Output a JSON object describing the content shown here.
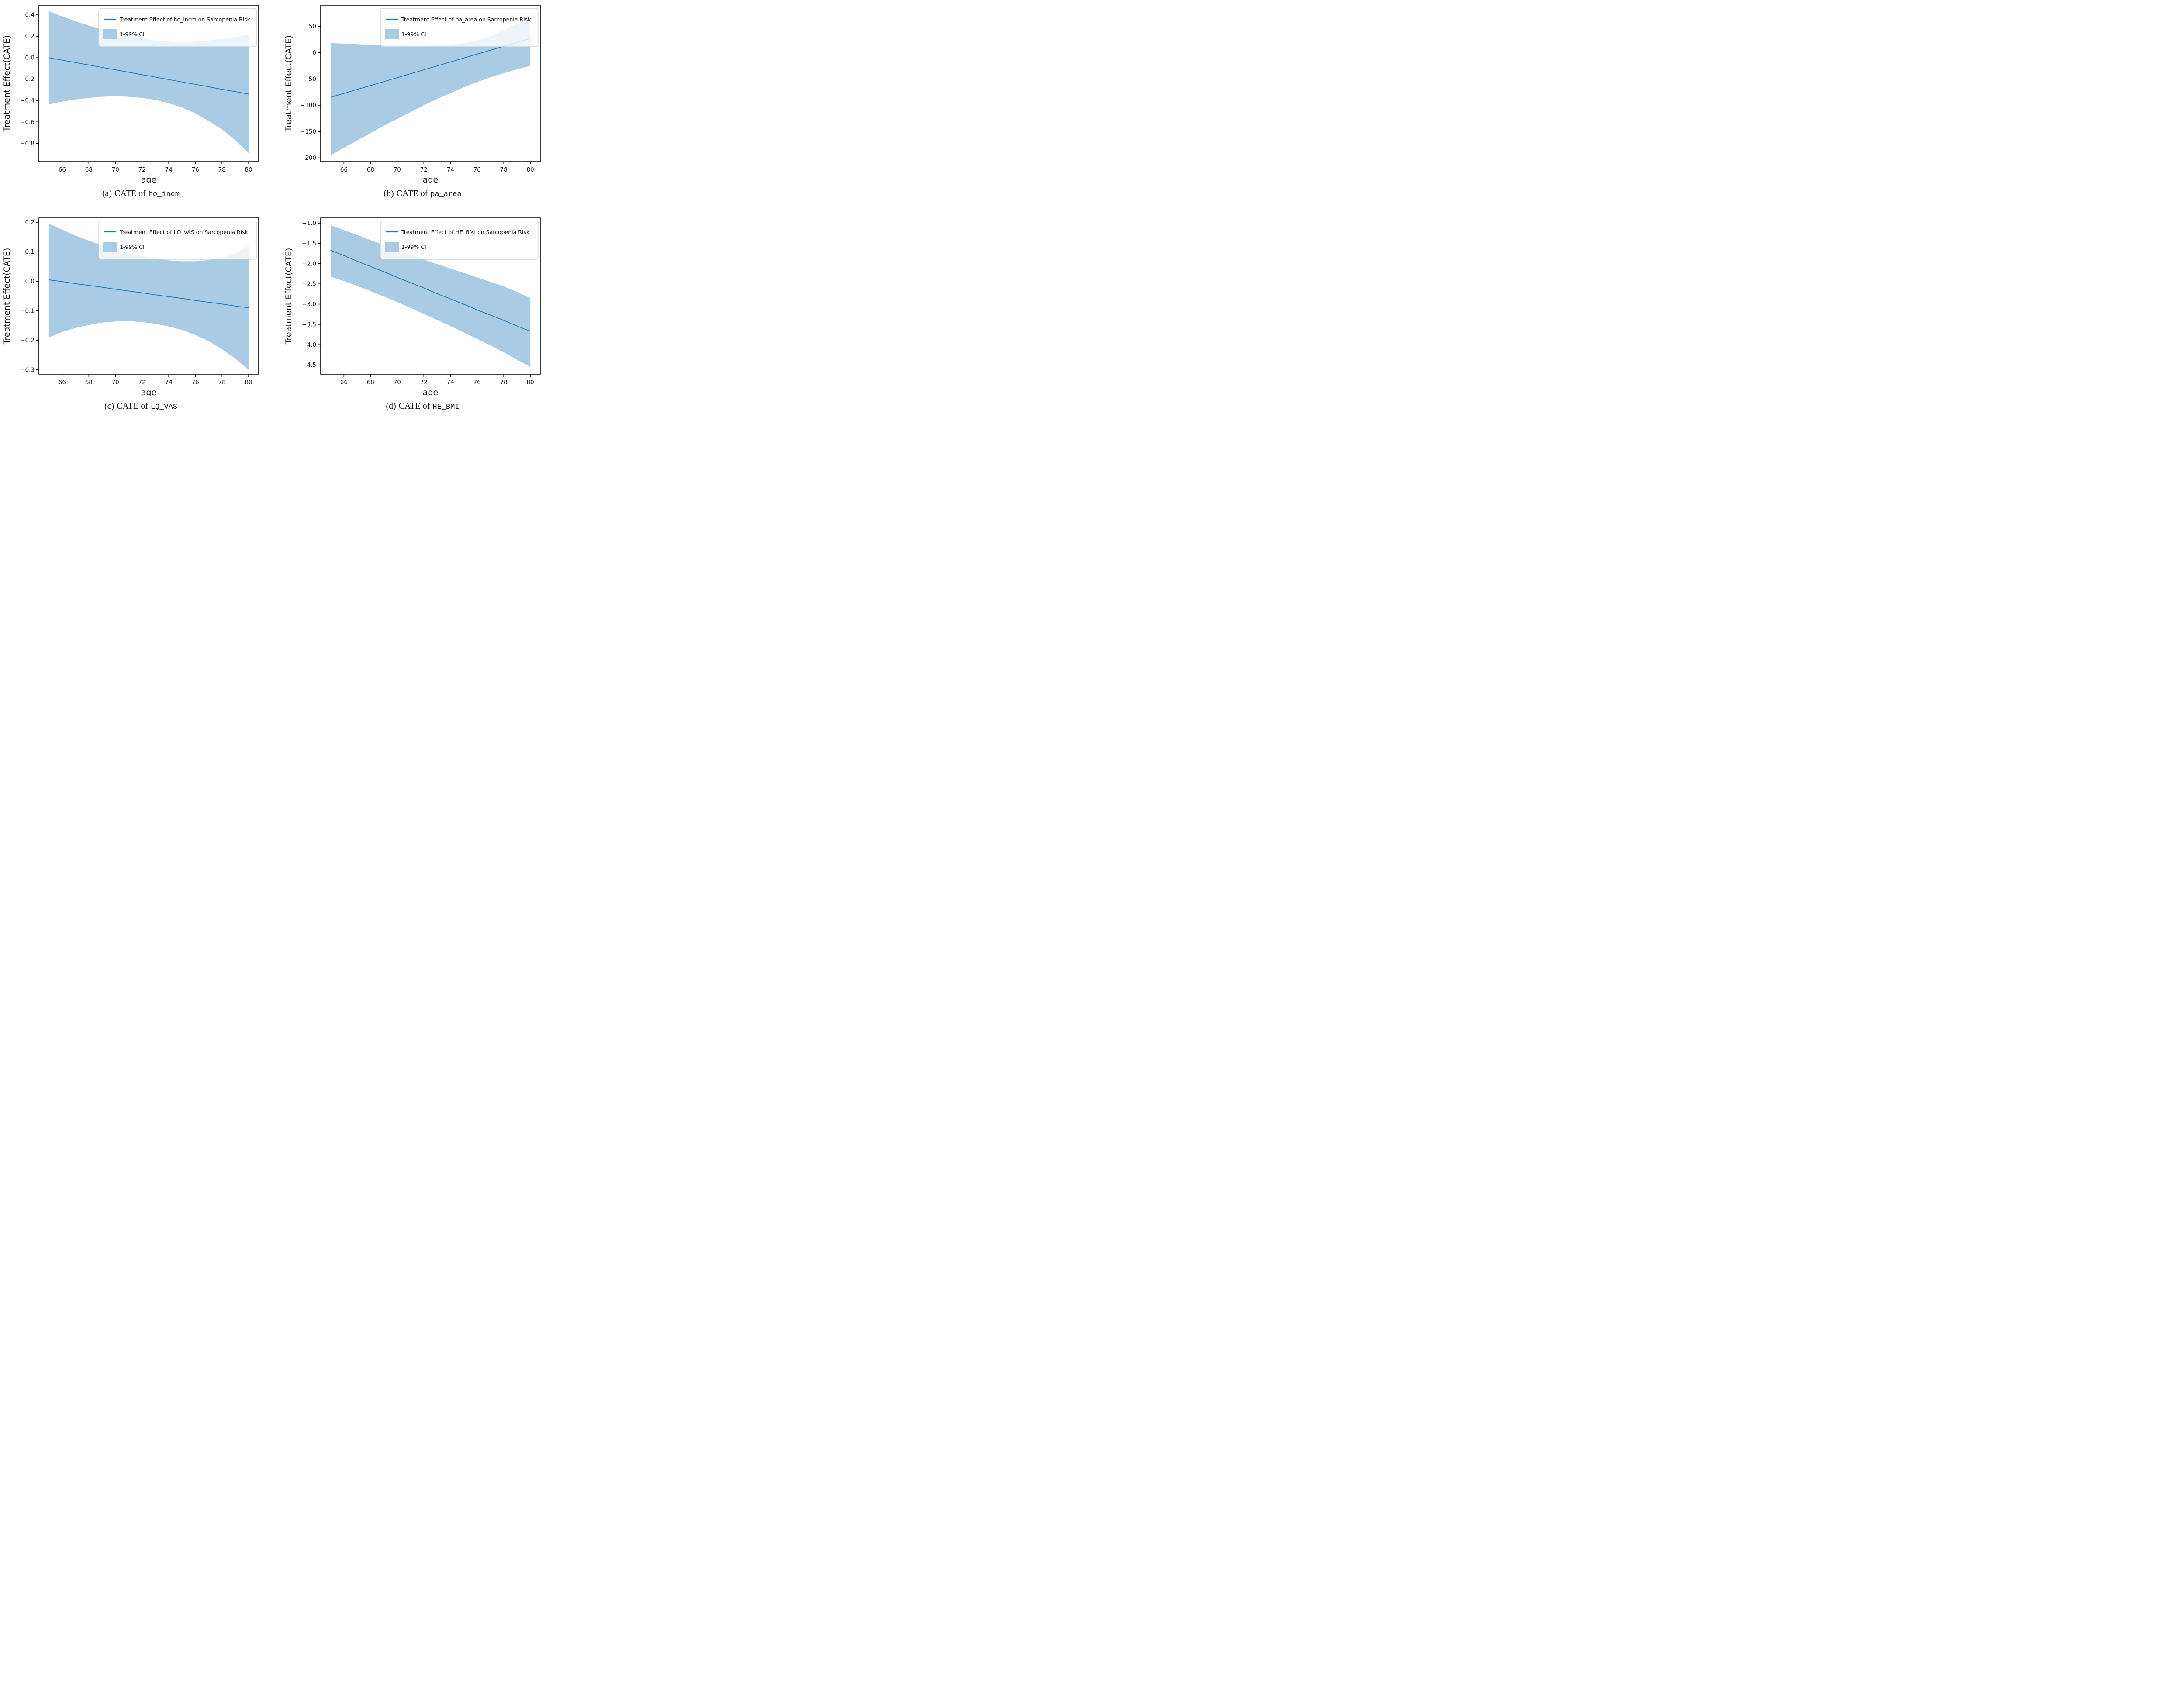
{
  "figure_title": "",
  "chart_data": [
    {
      "id": "a",
      "type": "line",
      "caption": {
        "prefix": "(a)",
        "text": "CATE of",
        "code": "ho_incm"
      },
      "xlabel": "age",
      "ylabel": "Treatment Effect(CATE)",
      "legend": {
        "line_label": "Treatment Effect of ho_incm on Sarcopenia Risk",
        "band_label": "1-99% CI",
        "position": "upper center"
      },
      "grid": false,
      "xlim": [
        64.25,
        80.75
      ],
      "ylim": [
        -0.97,
        0.49
      ],
      "xticks": [
        66,
        68,
        70,
        72,
        74,
        76,
        78,
        80
      ],
      "xtick_labels": [
        "66",
        "68",
        "70",
        "72",
        "74",
        "76",
        "78",
        "80"
      ],
      "yticks": [
        0.4,
        0.2,
        0.0,
        -0.2,
        -0.4,
        -0.6,
        -0.8
      ],
      "ytick_labels": [
        "0.4",
        "0.2",
        "0.0",
        "−0.2",
        "−0.4",
        "−0.6",
        "−0.8"
      ],
      "x": [
        65,
        66,
        67,
        68,
        69,
        70,
        71,
        72,
        73,
        74,
        75,
        76,
        77,
        78,
        79,
        80
      ],
      "line": [
        0.0,
        -0.023,
        -0.045,
        -0.068,
        -0.091,
        -0.113,
        -0.136,
        -0.159,
        -0.181,
        -0.204,
        -0.227,
        -0.249,
        -0.272,
        -0.295,
        -0.317,
        -0.34
      ],
      "ci_upper": [
        0.435,
        0.385,
        0.34,
        0.3,
        0.265,
        0.235,
        0.205,
        0.18,
        0.16,
        0.15,
        0.145,
        0.15,
        0.16,
        0.175,
        0.195,
        0.215
      ],
      "ci_lower": [
        -0.435,
        -0.41,
        -0.39,
        -0.375,
        -0.365,
        -0.36,
        -0.365,
        -0.375,
        -0.395,
        -0.425,
        -0.465,
        -0.52,
        -0.59,
        -0.67,
        -0.77,
        -0.89
      ],
      "colors": {
        "line": "#1f77b4",
        "band": "#a9cbe3"
      }
    },
    {
      "id": "b",
      "type": "line",
      "caption": {
        "prefix": "(b)",
        "text": "CATE of",
        "code": "pa_area"
      },
      "xlabel": "age",
      "ylabel": "Treatment Effect(CATE)",
      "legend": {
        "line_label": "Treatment Effect of pa_area on Sarcopenia Risk",
        "band_label": "1-99% CI",
        "position": "upper center"
      },
      "grid": false,
      "xlim": [
        64.25,
        80.75
      ],
      "ylim": [
        -207,
        90
      ],
      "xticks": [
        66,
        68,
        70,
        72,
        74,
        76,
        78,
        80
      ],
      "xtick_labels": [
        "66",
        "68",
        "70",
        "72",
        "74",
        "76",
        "78",
        "80"
      ],
      "yticks": [
        50,
        0,
        -50,
        -100,
        -150,
        -200
      ],
      "ytick_labels": [
        "50",
        "0",
        "−50",
        "−100",
        "−150",
        "−200"
      ],
      "x": [
        65,
        66,
        67,
        68,
        69,
        70,
        71,
        72,
        73,
        74,
        75,
        76,
        77,
        78,
        79,
        80
      ],
      "line": [
        -85.0,
        -77.5,
        -70.1,
        -62.6,
        -55.1,
        -47.7,
        -40.2,
        -32.7,
        -25.3,
        -17.8,
        -10.3,
        -2.9,
        4.6,
        12.1,
        19.5,
        27.0
      ],
      "ci_upper": [
        18,
        17,
        16,
        15,
        14,
        13.5,
        13,
        13,
        13.5,
        15,
        18,
        23,
        31,
        42,
        56,
        73
      ],
      "ci_lower": [
        -195,
        -181,
        -167,
        -153,
        -139,
        -126,
        -113,
        -100,
        -88,
        -77,
        -66,
        -56,
        -47,
        -39,
        -32,
        -25
      ],
      "colors": {
        "line": "#1f77b4",
        "band": "#a9cbe3"
      }
    },
    {
      "id": "c",
      "type": "line",
      "caption": {
        "prefix": "(c)",
        "text": "CATE of",
        "code": "LQ_VAS"
      },
      "xlabel": "age",
      "ylabel": "Treatment Effect(CATE)",
      "legend": {
        "line_label": "Treatment Effect of LQ_VAS on Sarcopenia Risk",
        "band_label": "1-99% CI",
        "position": "upper center"
      },
      "grid": false,
      "xlim": [
        64.25,
        80.75
      ],
      "ylim": [
        -0.315,
        0.215
      ],
      "xticks": [
        66,
        68,
        70,
        72,
        74,
        76,
        78,
        80
      ],
      "xtick_labels": [
        "66",
        "68",
        "70",
        "72",
        "74",
        "76",
        "78",
        "80"
      ],
      "yticks": [
        0.2,
        0.1,
        0.0,
        -0.1,
        -0.2,
        -0.3
      ],
      "ytick_labels": [
        "0.2",
        "0.1",
        "0.0",
        "−0.1",
        "−0.2",
        "−0.3"
      ],
      "x": [
        65,
        66,
        67,
        68,
        69,
        70,
        71,
        72,
        73,
        74,
        75,
        76,
        77,
        78,
        79,
        80
      ],
      "line": [
        0.005,
        -0.001,
        -0.008,
        -0.014,
        -0.02,
        -0.027,
        -0.033,
        -0.039,
        -0.046,
        -0.052,
        -0.058,
        -0.065,
        -0.071,
        -0.077,
        -0.084,
        -0.09
      ],
      "ci_upper": [
        0.195,
        0.175,
        0.155,
        0.138,
        0.122,
        0.108,
        0.095,
        0.085,
        0.077,
        0.071,
        0.068,
        0.068,
        0.072,
        0.08,
        0.095,
        0.12
      ],
      "ci_lower": [
        -0.19,
        -0.172,
        -0.158,
        -0.148,
        -0.14,
        -0.136,
        -0.135,
        -0.138,
        -0.144,
        -0.153,
        -0.165,
        -0.182,
        -0.203,
        -0.23,
        -0.262,
        -0.3
      ],
      "colors": {
        "line": "#1f77b4",
        "band": "#a9cbe3"
      }
    },
    {
      "id": "d",
      "type": "line",
      "caption": {
        "prefix": "(d)",
        "text": "CATE of",
        "code": "HE_BMI"
      },
      "xlabel": "age",
      "ylabel": "Treatment Effect(CATE)",
      "legend": {
        "line_label": "Treatment Effect of HE_BMI on Sarcopenia Risk",
        "band_label": "1-99% CI",
        "position": "upper center"
      },
      "grid": false,
      "xlim": [
        64.25,
        80.75
      ],
      "ylim": [
        -4.73,
        -0.87
      ],
      "xticks": [
        66,
        68,
        70,
        72,
        74,
        76,
        78,
        80
      ],
      "xtick_labels": [
        "66",
        "68",
        "70",
        "72",
        "74",
        "76",
        "78",
        "80"
      ],
      "yticks": [
        -1.0,
        -1.5,
        -2.0,
        -2.5,
        -3.0,
        -3.5,
        -4.0,
        -4.5
      ],
      "ytick_labels": [
        "−1.0",
        "−1.5",
        "−2.0",
        "−2.5",
        "−3.0",
        "−3.5",
        "−4.0",
        "−4.5"
      ],
      "x": [
        65,
        66,
        67,
        68,
        69,
        70,
        71,
        72,
        73,
        74,
        75,
        76,
        77,
        78,
        79,
        80
      ],
      "line": [
        -1.67,
        -1.8,
        -1.94,
        -2.07,
        -2.2,
        -2.34,
        -2.47,
        -2.6,
        -2.74,
        -2.87,
        -3.0,
        -3.14,
        -3.27,
        -3.4,
        -3.54,
        -3.67
      ],
      "ci_upper": [
        -1.05,
        -1.17,
        -1.29,
        -1.42,
        -1.54,
        -1.66,
        -1.78,
        -1.9,
        -2.01,
        -2.12,
        -2.23,
        -2.34,
        -2.45,
        -2.56,
        -2.7,
        -2.85
      ],
      "ci_lower": [
        -2.32,
        -2.43,
        -2.55,
        -2.68,
        -2.81,
        -2.95,
        -3.09,
        -3.24,
        -3.39,
        -3.54,
        -3.7,
        -3.86,
        -4.02,
        -4.19,
        -4.37,
        -4.55
      ],
      "colors": {
        "line": "#1f77b4",
        "band": "#a9cbe3"
      }
    }
  ]
}
